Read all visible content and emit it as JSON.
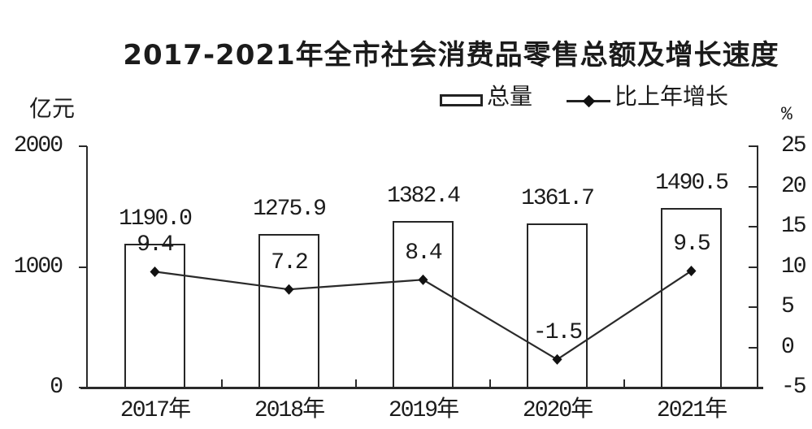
{
  "title": "2017-2021年全市社会消费品零售总额及增长速度",
  "colors": {
    "ink": "#1b1b1b",
    "line": "#2a2a2a",
    "marker": "#111111",
    "background": "#ffffff",
    "bar_fill": "#ffffff",
    "bar_border": "#262626"
  },
  "legend": [
    {
      "label": "总量",
      "swatch": "bar-swatch"
    },
    {
      "label": "比上年增长",
      "swatch": "line-diamond-swatch"
    }
  ],
  "axes": {
    "left": {
      "unit": "亿元",
      "ticks": [
        2000,
        1000,
        0
      ]
    },
    "right": {
      "unit": "%",
      "ticks": [
        25,
        20,
        15,
        10,
        5,
        0,
        -5
      ]
    }
  },
  "chart_data": {
    "type": "bar+line",
    "title": "2017-2021年全市社会消费品零售总额及增长速度",
    "categories": [
      "2017年",
      "2018年",
      "2019年",
      "2020年",
      "2021年"
    ],
    "series": [
      {
        "name": "总量",
        "type": "bar",
        "axis": "left",
        "values": [
          1190.0,
          1275.9,
          1382.4,
          1361.7,
          1490.5
        ],
        "labels": [
          "1190.0",
          "1275.9",
          "1382.4",
          "1361.7",
          "1490.5"
        ]
      },
      {
        "name": "比上年增长",
        "type": "line",
        "axis": "right",
        "values": [
          9.4,
          7.2,
          8.4,
          -1.5,
          9.5
        ],
        "labels": [
          "9.4",
          "7.2",
          "8.4",
          "-1.5",
          "9.5"
        ]
      }
    ],
    "left_axis": {
      "label": "亿元",
      "range": [
        0,
        2000
      ],
      "tick_step": 1000
    },
    "right_axis": {
      "label": "%",
      "range": [
        -5,
        25
      ],
      "tick_step": 5
    },
    "legend_position": "top",
    "grid": false
  }
}
